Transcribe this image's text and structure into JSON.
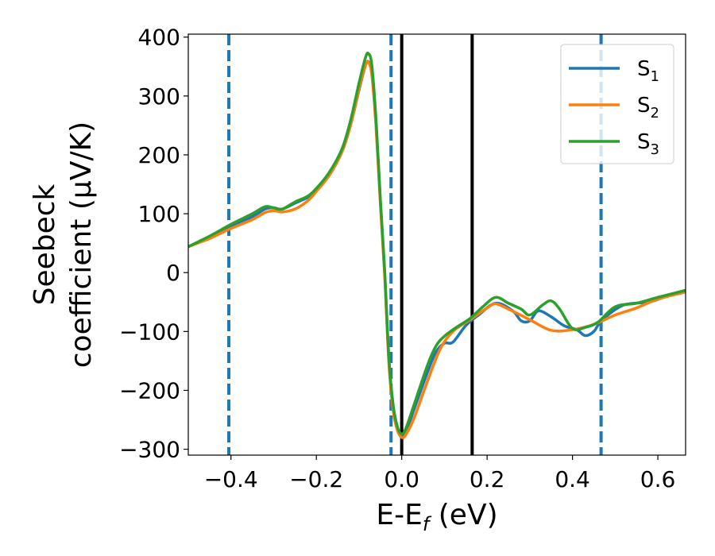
{
  "chart_data": {
    "type": "line",
    "xlabel": "E-E",
    "xlabel_sub": "f",
    "xlabel_unit": " (eV)",
    "ylabel_line1": "Seebeck",
    "ylabel_line2": "coefficient  (μV/K)",
    "xlim": [
      -0.5,
      0.665
    ],
    "ylim": [
      -310,
      405
    ],
    "xticks": [
      -0.4,
      -0.2,
      0.0,
      0.2,
      0.4,
      0.6
    ],
    "xtick_labels": [
      "−0.4",
      "−0.2",
      "0.0",
      "0.2",
      "0.4",
      "0.6"
    ],
    "yticks": [
      -300,
      -200,
      -100,
      0,
      100,
      200,
      300,
      400
    ],
    "ytick_labels": [
      "−300",
      "−200",
      "−100",
      "0",
      "100",
      "200",
      "300",
      "400"
    ],
    "grid": false,
    "legend_position": "top-right",
    "series": [
      {
        "name": "S",
        "name_sub": "1",
        "color": "#1f77b4",
        "points": [
          [
            -0.5,
            44
          ],
          [
            -0.45,
            60
          ],
          [
            -0.4,
            78
          ],
          [
            -0.35,
            95
          ],
          [
            -0.32,
            108
          ],
          [
            -0.3,
            110
          ],
          [
            -0.28,
            108
          ],
          [
            -0.25,
            118
          ],
          [
            -0.22,
            128
          ],
          [
            -0.2,
            140
          ],
          [
            -0.17,
            165
          ],
          [
            -0.14,
            205
          ],
          [
            -0.12,
            250
          ],
          [
            -0.1,
            310
          ],
          [
            -0.085,
            352
          ],
          [
            -0.078,
            358
          ],
          [
            -0.07,
            340
          ],
          [
            -0.06,
            250
          ],
          [
            -0.05,
            120
          ],
          [
            -0.04,
            0
          ],
          [
            -0.03,
            -150
          ],
          [
            -0.02,
            -230
          ],
          [
            -0.01,
            -265
          ],
          [
            0.0,
            -278
          ],
          [
            0.01,
            -270
          ],
          [
            0.03,
            -230
          ],
          [
            0.06,
            -170
          ],
          [
            0.08,
            -135
          ],
          [
            0.1,
            -120
          ],
          [
            0.12,
            -118
          ],
          [
            0.15,
            -90
          ],
          [
            0.18,
            -72
          ],
          [
            0.22,
            -52
          ],
          [
            0.26,
            -65
          ],
          [
            0.28,
            -82
          ],
          [
            0.3,
            -82
          ],
          [
            0.32,
            -65
          ],
          [
            0.35,
            -75
          ],
          [
            0.38,
            -90
          ],
          [
            0.41,
            -97
          ],
          [
            0.43,
            -107
          ],
          [
            0.45,
            -100
          ],
          [
            0.47,
            -80
          ],
          [
            0.52,
            -55
          ],
          [
            0.58,
            -50
          ],
          [
            0.62,
            -40
          ],
          [
            0.665,
            -30
          ]
        ]
      },
      {
        "name": "S",
        "name_sub": "2",
        "color": "#ff7f0e",
        "points": [
          [
            -0.5,
            44
          ],
          [
            -0.45,
            58
          ],
          [
            -0.4,
            75
          ],
          [
            -0.35,
            90
          ],
          [
            -0.32,
            102
          ],
          [
            -0.3,
            105
          ],
          [
            -0.28,
            103
          ],
          [
            -0.25,
            108
          ],
          [
            -0.22,
            122
          ],
          [
            -0.2,
            138
          ],
          [
            -0.17,
            165
          ],
          [
            -0.14,
            205
          ],
          [
            -0.12,
            250
          ],
          [
            -0.1,
            312
          ],
          [
            -0.085,
            352
          ],
          [
            -0.078,
            357
          ],
          [
            -0.07,
            335
          ],
          [
            -0.06,
            245
          ],
          [
            -0.05,
            115
          ],
          [
            -0.04,
            -5
          ],
          [
            -0.03,
            -155
          ],
          [
            -0.02,
            -235
          ],
          [
            -0.01,
            -268
          ],
          [
            0.0,
            -280
          ],
          [
            0.01,
            -275
          ],
          [
            0.03,
            -245
          ],
          [
            0.06,
            -185
          ],
          [
            0.09,
            -130
          ],
          [
            0.12,
            -100
          ],
          [
            0.16,
            -80
          ],
          [
            0.2,
            -60
          ],
          [
            0.22,
            -53
          ],
          [
            0.25,
            -62
          ],
          [
            0.3,
            -80
          ],
          [
            0.35,
            -98
          ],
          [
            0.4,
            -97
          ],
          [
            0.45,
            -88
          ],
          [
            0.5,
            -72
          ],
          [
            0.55,
            -60
          ],
          [
            0.6,
            -45
          ],
          [
            0.665,
            -33
          ]
        ]
      },
      {
        "name": "S",
        "name_sub": "3",
        "color": "#2ca02c",
        "points": [
          [
            -0.5,
            44
          ],
          [
            -0.45,
            62
          ],
          [
            -0.4,
            82
          ],
          [
            -0.35,
            100
          ],
          [
            -0.32,
            112
          ],
          [
            -0.3,
            110
          ],
          [
            -0.28,
            108
          ],
          [
            -0.25,
            120
          ],
          [
            -0.22,
            130
          ],
          [
            -0.2,
            143
          ],
          [
            -0.17,
            170
          ],
          [
            -0.14,
            210
          ],
          [
            -0.12,
            258
          ],
          [
            -0.1,
            322
          ],
          [
            -0.085,
            365
          ],
          [
            -0.078,
            372
          ],
          [
            -0.07,
            352
          ],
          [
            -0.06,
            258
          ],
          [
            -0.05,
            125
          ],
          [
            -0.04,
            5
          ],
          [
            -0.03,
            -145
          ],
          [
            -0.02,
            -225
          ],
          [
            -0.01,
            -262
          ],
          [
            0.0,
            -274
          ],
          [
            0.01,
            -264
          ],
          [
            0.03,
            -222
          ],
          [
            0.06,
            -158
          ],
          [
            0.08,
            -125
          ],
          [
            0.1,
            -108
          ],
          [
            0.13,
            -92
          ],
          [
            0.16,
            -78
          ],
          [
            0.19,
            -58
          ],
          [
            0.22,
            -42
          ],
          [
            0.25,
            -52
          ],
          [
            0.28,
            -62
          ],
          [
            0.3,
            -72
          ],
          [
            0.33,
            -55
          ],
          [
            0.35,
            -48
          ],
          [
            0.37,
            -62
          ],
          [
            0.4,
            -95
          ],
          [
            0.43,
            -93
          ],
          [
            0.46,
            -84
          ],
          [
            0.5,
            -58
          ],
          [
            0.55,
            -52
          ],
          [
            0.6,
            -42
          ],
          [
            0.665,
            -30
          ]
        ]
      }
    ],
    "vlines": [
      {
        "x": -0.405,
        "style": "dashed",
        "color": "#1f77b4"
      },
      {
        "x": -0.025,
        "style": "dashed",
        "color": "#1f77b4"
      },
      {
        "x": 0.467,
        "style": "dashed",
        "color": "#1f77b4"
      },
      {
        "x": 0.0,
        "style": "solid",
        "color": "#000000"
      },
      {
        "x": 0.165,
        "style": "solid",
        "color": "#000000"
      }
    ]
  }
}
